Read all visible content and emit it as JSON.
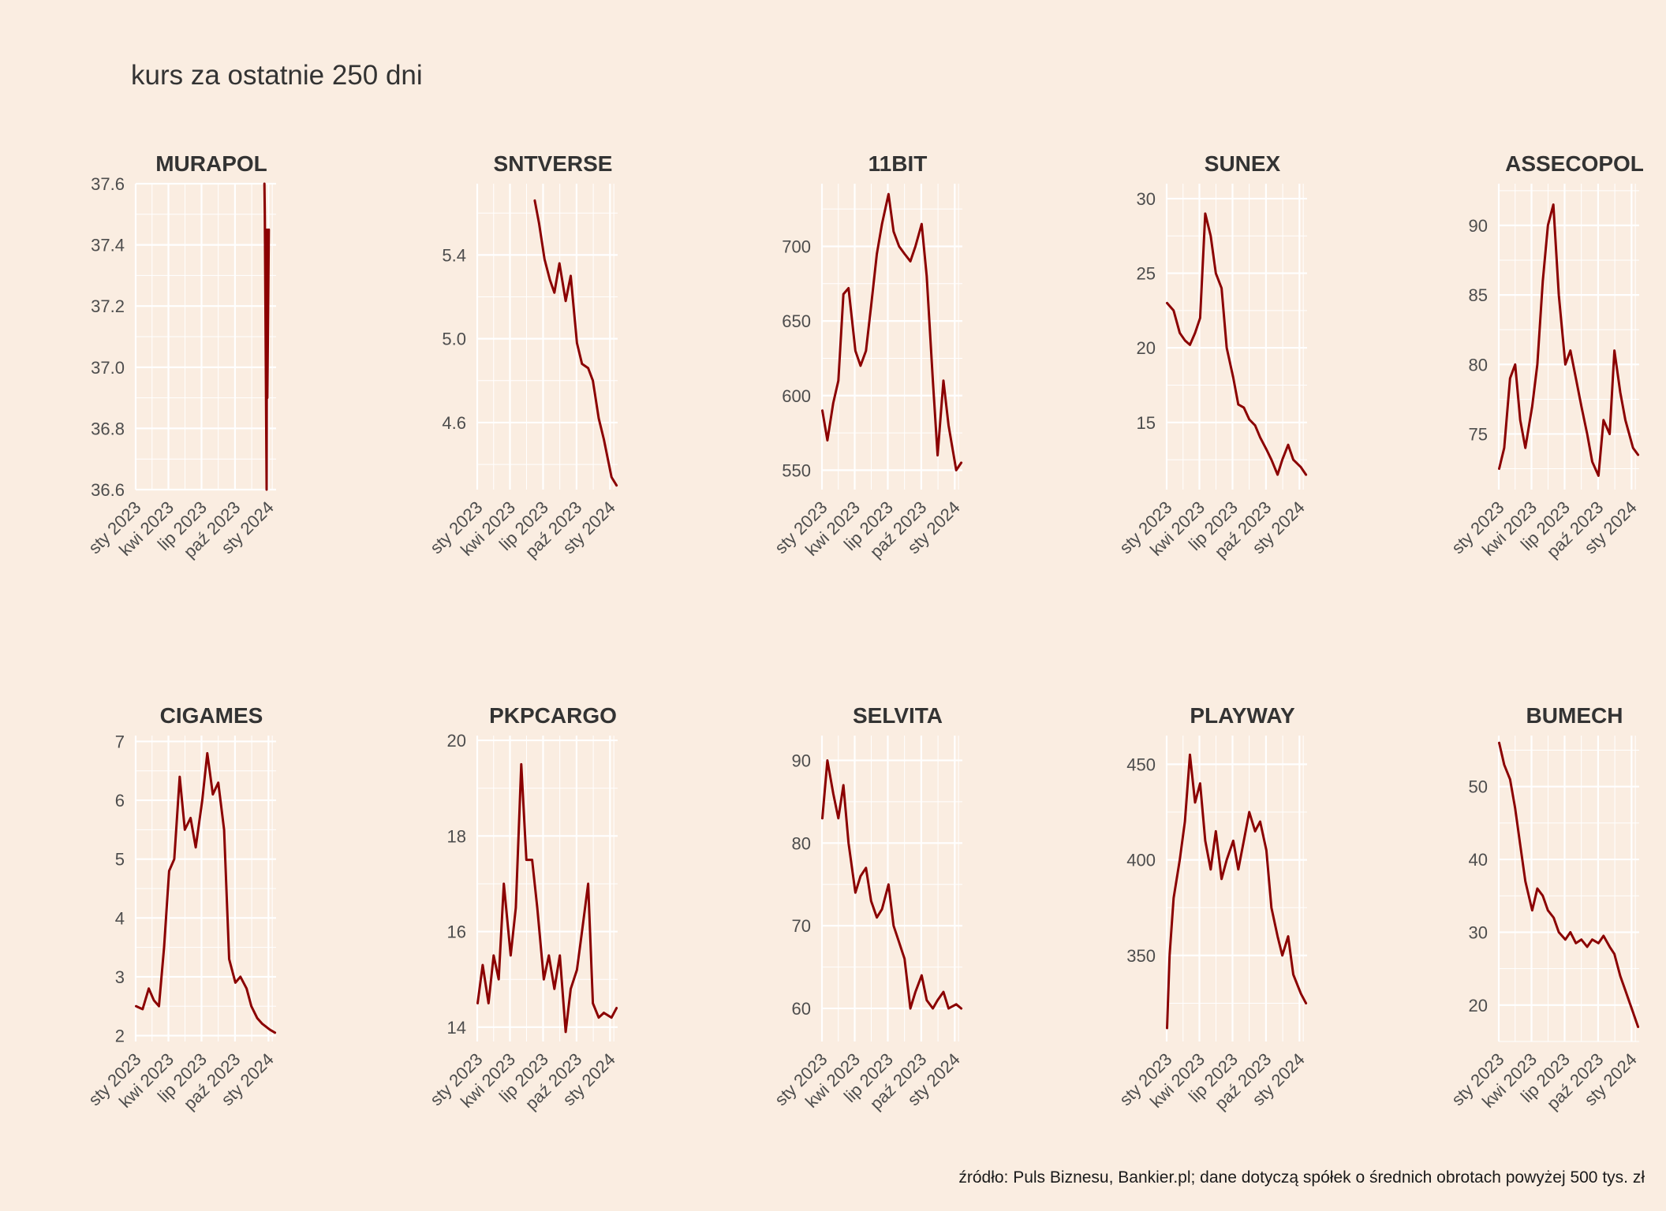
{
  "title": "kurs za ostatnie 250 dni",
  "caption": "źródło: Puls Biznesu, Bankier.pl; dane dotyczą spółek o średnich obrotach powyżej 500 tys. zł",
  "colors": {
    "background": "#faede1",
    "line": "#8b0000",
    "grid": "#ffffff",
    "text": "#333333"
  },
  "x_tick_labels": [
    "sty 2023",
    "kwi 2023",
    "lip 2023",
    "paź 2023",
    "sty 2024"
  ],
  "chart_data": [
    {
      "type": "line",
      "title": "MURAPOL",
      "xlim": [
        "2023-01-01",
        "2024-01-22"
      ],
      "ylim": [
        36.6,
        37.6
      ],
      "yticks": [
        36.6,
        36.8,
        37.0,
        37.2,
        37.4,
        37.6
      ],
      "x": [
        "2023-12-21",
        "2023-12-22",
        "2023-12-27",
        "2023-12-28",
        "2023-12-29",
        "2024-01-02"
      ],
      "y": [
        37.6,
        37.5,
        36.6,
        37.45,
        36.9,
        37.45
      ]
    },
    {
      "type": "line",
      "title": "SNTVERSE",
      "xlim": [
        "2023-01-01",
        "2024-01-22"
      ],
      "ylim": [
        4.28,
        5.74
      ],
      "yticks": [
        4.6,
        5.0,
        5.4
      ],
      "x": [
        "2023-06-08",
        "2023-06-20",
        "2023-07-05",
        "2023-07-20",
        "2023-08-01",
        "2023-08-15",
        "2023-09-01",
        "2023-09-15",
        "2023-10-02",
        "2023-10-16",
        "2023-11-02",
        "2023-11-15",
        "2023-12-01",
        "2023-12-15",
        "2024-01-05",
        "2024-01-19"
      ],
      "y": [
        5.66,
        5.55,
        5.38,
        5.28,
        5.22,
        5.36,
        5.18,
        5.3,
        4.98,
        4.88,
        4.86,
        4.8,
        4.62,
        4.52,
        4.34,
        4.3
      ]
    },
    {
      "type": "line",
      "title": "11BIT",
      "xlim": [
        "2023-01-01",
        "2024-01-22"
      ],
      "ylim": [
        537,
        742
      ],
      "yticks": [
        550,
        600,
        650,
        700
      ],
      "x": [
        "2023-01-02",
        "2023-01-16",
        "2023-02-01",
        "2023-02-15",
        "2023-03-01",
        "2023-03-15",
        "2023-04-03",
        "2023-04-17",
        "2023-05-02",
        "2023-05-16",
        "2023-06-01",
        "2023-06-15",
        "2023-07-03",
        "2023-07-17",
        "2023-08-01",
        "2023-08-16",
        "2023-09-01",
        "2023-09-15",
        "2023-10-02",
        "2023-10-16",
        "2023-11-02",
        "2023-11-15",
        "2023-12-01",
        "2023-12-15",
        "2024-01-05",
        "2024-01-19"
      ],
      "y": [
        590,
        570,
        595,
        610,
        668,
        672,
        630,
        620,
        630,
        660,
        695,
        715,
        735,
        710,
        700,
        695,
        690,
        700,
        715,
        680,
        610,
        560,
        610,
        580,
        550,
        555
      ]
    },
    {
      "type": "line",
      "title": "SUNEX",
      "xlim": [
        "2023-01-01",
        "2024-01-22"
      ],
      "ylim": [
        10.5,
        31
      ],
      "yticks": [
        15,
        20,
        25,
        30
      ],
      "x": [
        "2023-01-02",
        "2023-01-20",
        "2023-02-06",
        "2023-02-20",
        "2023-03-06",
        "2023-03-20",
        "2023-04-03",
        "2023-04-17",
        "2023-05-02",
        "2023-05-16",
        "2023-06-01",
        "2023-06-15",
        "2023-07-03",
        "2023-07-17",
        "2023-08-01",
        "2023-08-16",
        "2023-09-01",
        "2023-09-15",
        "2023-10-02",
        "2023-10-16",
        "2023-11-02",
        "2023-11-15",
        "2023-12-01",
        "2023-12-15",
        "2024-01-05",
        "2024-01-19"
      ],
      "y": [
        23,
        22.5,
        21,
        20.5,
        20.2,
        21,
        22,
        29,
        27.5,
        25,
        24,
        20,
        18,
        16.2,
        16,
        15.2,
        14.8,
        14,
        13.2,
        12.5,
        11.5,
        12.5,
        13.5,
        12.5,
        12,
        11.5
      ]
    },
    {
      "type": "line",
      "title": "ASSECOPOL",
      "xlim": [
        "2023-01-01",
        "2024-01-22"
      ],
      "ylim": [
        71,
        93
      ],
      "yticks": [
        75,
        80,
        85,
        90
      ],
      "x": [
        "2023-01-02",
        "2023-01-16",
        "2023-02-01",
        "2023-02-15",
        "2023-03-01",
        "2023-03-15",
        "2023-04-03",
        "2023-04-17",
        "2023-05-02",
        "2023-05-16",
        "2023-05-31",
        "2023-06-15",
        "2023-07-03",
        "2023-07-17",
        "2023-08-01",
        "2023-08-16",
        "2023-09-01",
        "2023-09-15",
        "2023-10-02",
        "2023-10-16",
        "2023-11-02",
        "2023-11-15",
        "2023-12-01",
        "2023-12-15",
        "2024-01-05",
        "2024-01-19"
      ],
      "y": [
        72.5,
        74,
        79,
        80,
        76,
        74,
        77,
        80,
        86,
        90,
        91.5,
        85,
        80,
        81,
        79,
        77,
        75,
        73,
        72,
        76,
        75,
        81,
        78,
        76,
        74,
        73.5
      ]
    },
    {
      "type": "line",
      "title": "CIGAMES",
      "xlim": [
        "2023-01-01",
        "2024-01-22"
      ],
      "ylim": [
        1.9,
        7.1
      ],
      "yticks": [
        2,
        3,
        4,
        5,
        6,
        7
      ],
      "x": [
        "2023-01-02",
        "2023-01-20",
        "2023-02-06",
        "2023-02-20",
        "2023-03-06",
        "2023-03-20",
        "2023-04-03",
        "2023-04-17",
        "2023-05-02",
        "2023-05-16",
        "2023-06-01",
        "2023-06-15",
        "2023-07-03",
        "2023-07-17",
        "2023-08-01",
        "2023-08-16",
        "2023-09-01",
        "2023-09-15",
        "2023-10-02",
        "2023-10-16",
        "2023-11-02",
        "2023-11-15",
        "2023-12-01",
        "2023-12-15",
        "2024-01-05",
        "2024-01-19"
      ],
      "y": [
        2.5,
        2.45,
        2.8,
        2.6,
        2.5,
        3.5,
        4.8,
        5.0,
        6.4,
        5.5,
        5.7,
        5.2,
        6.0,
        6.8,
        6.1,
        6.3,
        5.5,
        3.3,
        2.9,
        3.0,
        2.8,
        2.5,
        2.3,
        2.2,
        2.1,
        2.05
      ]
    },
    {
      "type": "line",
      "title": "PKPCARGO",
      "xlim": [
        "2023-01-01",
        "2024-01-22"
      ],
      "ylim": [
        13.7,
        20.1
      ],
      "yticks": [
        14,
        16,
        18,
        20
      ],
      "x": [
        "2023-01-02",
        "2023-01-16",
        "2023-02-01",
        "2023-02-15",
        "2023-03-01",
        "2023-03-15",
        "2023-04-03",
        "2023-04-17",
        "2023-05-02",
        "2023-05-16",
        "2023-06-01",
        "2023-06-15",
        "2023-07-03",
        "2023-07-17",
        "2023-08-01",
        "2023-08-16",
        "2023-09-01",
        "2023-09-15",
        "2023-10-02",
        "2023-10-16",
        "2023-11-02",
        "2023-11-15",
        "2023-12-01",
        "2023-12-15",
        "2024-01-05",
        "2024-01-19"
      ],
      "y": [
        14.5,
        15.3,
        14.5,
        15.5,
        15.0,
        17.0,
        15.5,
        16.5,
        19.5,
        17.5,
        17.5,
        16.5,
        15.0,
        15.5,
        14.8,
        15.5,
        13.9,
        14.8,
        15.2,
        16.0,
        17.0,
        14.5,
        14.2,
        14.3,
        14.2,
        14.4
      ]
    },
    {
      "type": "line",
      "title": "SELVITA",
      "xlim": [
        "2023-01-01",
        "2024-01-22"
      ],
      "ylim": [
        56,
        93
      ],
      "yticks": [
        60,
        70,
        80,
        90
      ],
      "x": [
        "2023-01-02",
        "2023-01-16",
        "2023-02-01",
        "2023-02-15",
        "2023-03-01",
        "2023-03-15",
        "2023-04-03",
        "2023-04-17",
        "2023-05-02",
        "2023-05-16",
        "2023-06-01",
        "2023-06-15",
        "2023-07-03",
        "2023-07-17",
        "2023-08-01",
        "2023-08-16",
        "2023-09-01",
        "2023-09-15",
        "2023-10-02",
        "2023-10-16",
        "2023-11-02",
        "2023-11-15",
        "2023-12-01",
        "2023-12-15",
        "2024-01-05",
        "2024-01-19"
      ],
      "y": [
        83,
        90,
        86,
        83,
        87,
        80,
        74,
        76,
        77,
        73,
        71,
        72,
        75,
        70,
        68,
        66,
        60,
        62,
        64,
        61,
        60,
        61,
        62,
        60,
        60.5,
        60
      ]
    },
    {
      "type": "line",
      "title": "PLAYWAY",
      "xlim": [
        "2023-01-01",
        "2024-01-22"
      ],
      "ylim": [
        305,
        465
      ],
      "yticks": [
        350,
        400,
        450
      ],
      "x": [
        "2023-01-02",
        "2023-01-09",
        "2023-01-20",
        "2023-02-06",
        "2023-02-20",
        "2023-03-06",
        "2023-03-20",
        "2023-04-03",
        "2023-04-17",
        "2023-05-02",
        "2023-05-16",
        "2023-06-01",
        "2023-06-15",
        "2023-07-03",
        "2023-07-17",
        "2023-08-01",
        "2023-08-16",
        "2023-09-01",
        "2023-09-15",
        "2023-10-02",
        "2023-10-16",
        "2023-11-02",
        "2023-11-15",
        "2023-12-01",
        "2023-12-15",
        "2024-01-05",
        "2024-01-19"
      ],
      "y": [
        312,
        350,
        380,
        400,
        420,
        455,
        430,
        440,
        410,
        395,
        415,
        390,
        400,
        410,
        395,
        410,
        425,
        415,
        420,
        405,
        375,
        360,
        350,
        360,
        340,
        330,
        325
      ]
    },
    {
      "type": "line",
      "title": "BUMECH",
      "xlim": [
        "2023-01-01",
        "2024-01-22"
      ],
      "ylim": [
        15,
        57
      ],
      "yticks": [
        20,
        30,
        40,
        50
      ],
      "x": [
        "2023-01-02",
        "2023-01-16",
        "2023-02-01",
        "2023-02-15",
        "2023-03-01",
        "2023-03-15",
        "2023-04-03",
        "2023-04-17",
        "2023-05-02",
        "2023-05-16",
        "2023-06-01",
        "2023-06-15",
        "2023-07-03",
        "2023-07-17",
        "2023-08-01",
        "2023-08-16",
        "2023-09-01",
        "2023-09-15",
        "2023-10-02",
        "2023-10-16",
        "2023-11-02",
        "2023-11-15",
        "2023-12-01",
        "2023-12-15",
        "2024-01-05",
        "2024-01-19"
      ],
      "y": [
        56,
        53,
        51,
        47,
        42,
        37,
        33,
        36,
        35,
        33,
        32,
        30,
        29,
        30,
        28.5,
        29,
        28,
        29,
        28.5,
        29.5,
        28,
        27,
        24,
        22,
        19,
        17
      ]
    }
  ]
}
